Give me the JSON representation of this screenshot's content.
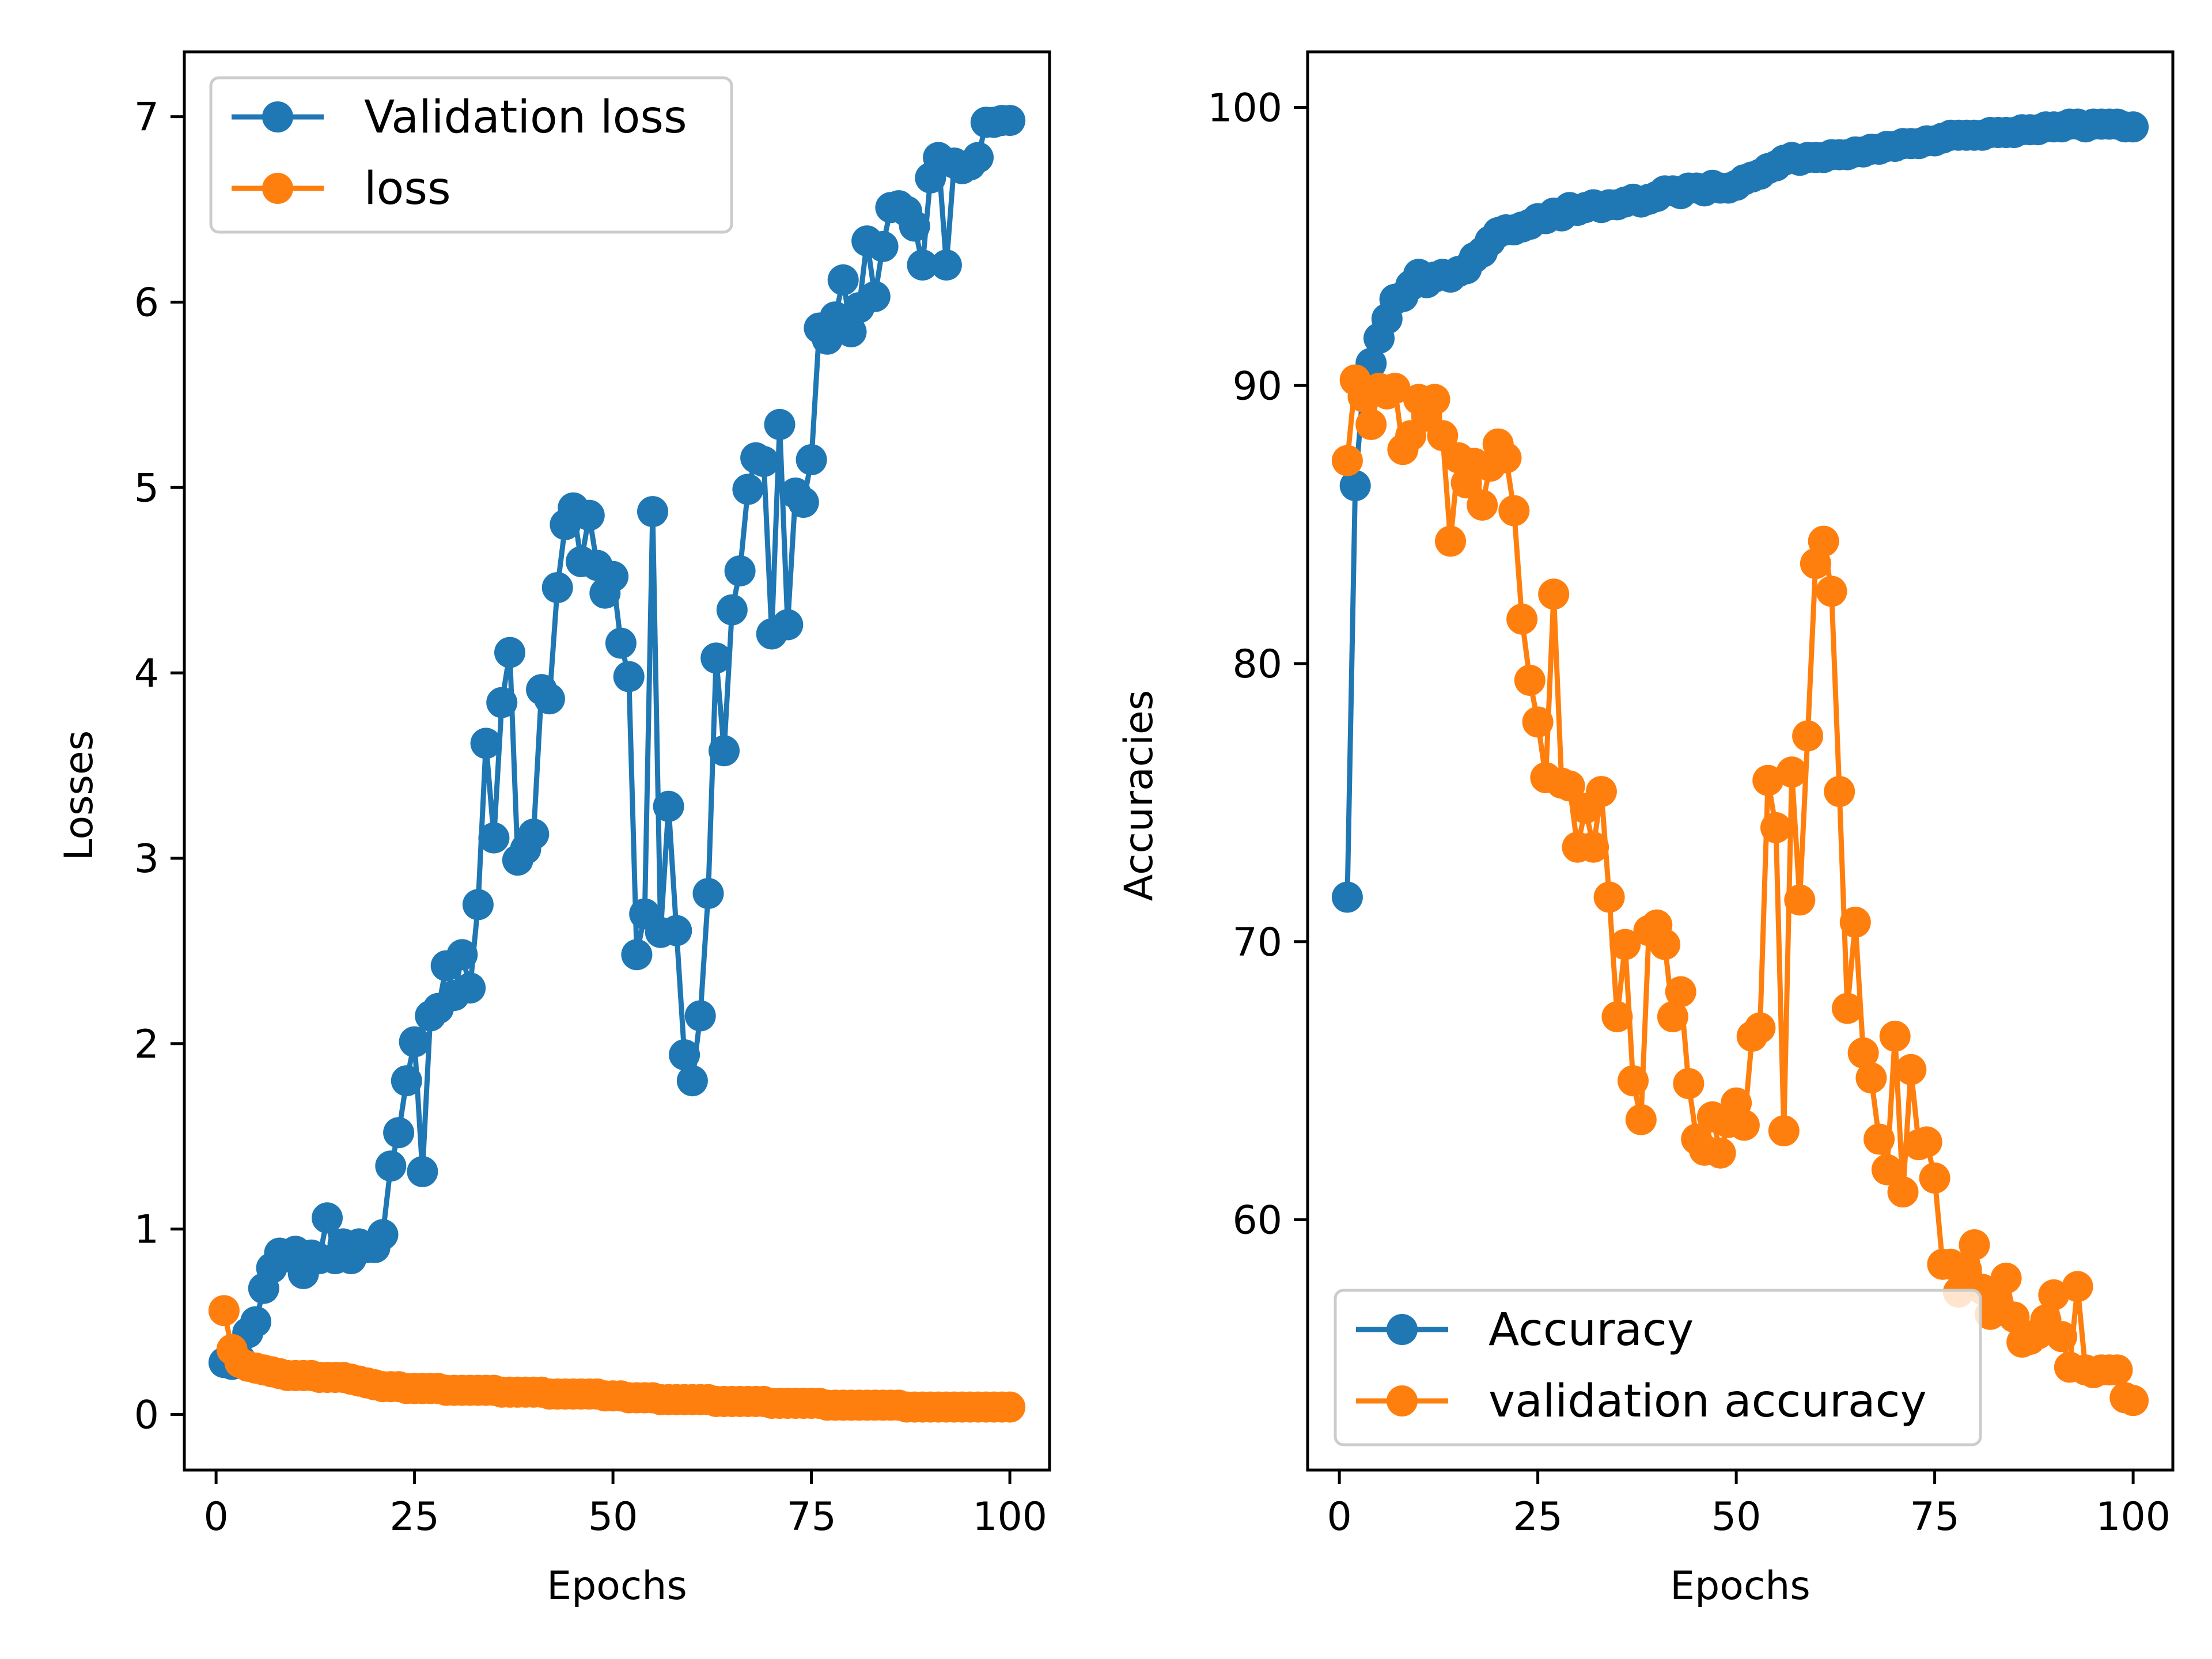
{
  "chart_data": [
    {
      "type": "line",
      "xlabel": "Epochs",
      "ylabel": "Losses",
      "xlim": [
        -4,
        105
      ],
      "ylim": [
        -0.3,
        7.35
      ],
      "xticks": [
        0,
        25,
        50,
        75,
        100
      ],
      "yticks": [
        0,
        1,
        2,
        3,
        4,
        5,
        6,
        7
      ],
      "legend_position": "upper-left",
      "x": [
        1,
        2,
        3,
        4,
        5,
        6,
        7,
        8,
        9,
        10,
        11,
        12,
        13,
        14,
        15,
        16,
        17,
        18,
        19,
        20,
        21,
        22,
        23,
        24,
        25,
        26,
        27,
        28,
        29,
        30,
        31,
        32,
        33,
        34,
        35,
        36,
        37,
        38,
        39,
        40,
        41,
        42,
        43,
        44,
        45,
        46,
        47,
        48,
        49,
        50,
        51,
        52,
        53,
        54,
        55,
        56,
        57,
        58,
        59,
        60,
        61,
        62,
        63,
        64,
        65,
        66,
        67,
        68,
        69,
        70,
        71,
        72,
        73,
        74,
        75,
        76,
        77,
        78,
        79,
        80,
        81,
        82,
        83,
        84,
        85,
        86,
        87,
        88,
        89,
        90,
        91,
        92,
        93,
        94,
        95,
        96,
        97,
        98,
        99,
        100
      ],
      "series": [
        {
          "name": "Validation loss",
          "color": "#1f77b4",
          "values": [
            0.28,
            0.27,
            0.3,
            0.44,
            0.5,
            0.68,
            0.79,
            0.87,
            0.85,
            0.88,
            0.76,
            0.86,
            0.84,
            1.06,
            0.84,
            0.92,
            0.84,
            0.92,
            0.9,
            0.9,
            0.97,
            1.34,
            1.52,
            1.8,
            2.01,
            1.31,
            2.15,
            2.19,
            2.42,
            2.26,
            2.48,
            2.3,
            2.75,
            3.62,
            3.11,
            3.84,
            4.11,
            2.99,
            3.05,
            3.13,
            3.91,
            3.86,
            4.46,
            4.8,
            4.89,
            4.6,
            4.85,
            4.58,
            4.43,
            4.52,
            4.16,
            3.98,
            2.48,
            2.7,
            4.87,
            2.6,
            3.28,
            2.61,
            1.94,
            1.8,
            2.15,
            2.81,
            4.08,
            3.58,
            4.34,
            4.55,
            4.99,
            5.16,
            5.14,
            4.21,
            5.34,
            4.26,
            4.97,
            4.92,
            5.15,
            5.86,
            5.8,
            5.92,
            6.12,
            5.84,
            5.97,
            6.33,
            6.03,
            6.3,
            6.51,
            6.52,
            6.49,
            6.41,
            6.2,
            6.67,
            6.78,
            6.2,
            6.75,
            6.72,
            6.74,
            6.78,
            6.97,
            6.97,
            6.98,
            6.98
          ]
        },
        {
          "name": "loss",
          "color": "#ff7f0e",
          "values": [
            0.56,
            0.35,
            0.28,
            0.26,
            0.25,
            0.24,
            0.23,
            0.22,
            0.21,
            0.21,
            0.21,
            0.21,
            0.2,
            0.2,
            0.2,
            0.2,
            0.19,
            0.18,
            0.17,
            0.16,
            0.15,
            0.15,
            0.15,
            0.14,
            0.14,
            0.14,
            0.14,
            0.14,
            0.13,
            0.13,
            0.13,
            0.13,
            0.13,
            0.13,
            0.13,
            0.12,
            0.12,
            0.12,
            0.12,
            0.12,
            0.12,
            0.11,
            0.11,
            0.11,
            0.11,
            0.11,
            0.11,
            0.11,
            0.1,
            0.1,
            0.1,
            0.09,
            0.09,
            0.09,
            0.09,
            0.08,
            0.08,
            0.08,
            0.08,
            0.08,
            0.08,
            0.08,
            0.07,
            0.07,
            0.07,
            0.07,
            0.07,
            0.07,
            0.07,
            0.06,
            0.06,
            0.06,
            0.06,
            0.06,
            0.06,
            0.06,
            0.05,
            0.05,
            0.05,
            0.05,
            0.05,
            0.05,
            0.05,
            0.05,
            0.05,
            0.05,
            0.04,
            0.04,
            0.04,
            0.04,
            0.04,
            0.04,
            0.04,
            0.04,
            0.04,
            0.04,
            0.04,
            0.04,
            0.04,
            0.04
          ]
        }
      ]
    },
    {
      "type": "line",
      "xlabel": "Epochs",
      "ylabel": "Accuracies",
      "xlim": [
        -4,
        105
      ],
      "ylim": [
        51,
        102
      ],
      "xticks": [
        0,
        25,
        50,
        75,
        100
      ],
      "yticks": [
        60,
        70,
        80,
        90,
        100
      ],
      "legend_position": "lower-left",
      "x": [
        1,
        2,
        3,
        4,
        5,
        6,
        7,
        8,
        9,
        10,
        11,
        12,
        13,
        14,
        15,
        16,
        17,
        18,
        19,
        20,
        21,
        22,
        23,
        24,
        25,
        26,
        27,
        28,
        29,
        30,
        31,
        32,
        33,
        34,
        35,
        36,
        37,
        38,
        39,
        40,
        41,
        42,
        43,
        44,
        45,
        46,
        47,
        48,
        49,
        50,
        51,
        52,
        53,
        54,
        55,
        56,
        57,
        58,
        59,
        60,
        61,
        62,
        63,
        64,
        65,
        66,
        67,
        68,
        69,
        70,
        71,
        72,
        73,
        74,
        75,
        76,
        77,
        78,
        79,
        80,
        81,
        82,
        83,
        84,
        85,
        86,
        87,
        88,
        89,
        90,
        91,
        92,
        93,
        94,
        95,
        96,
        97,
        98,
        99,
        100
      ],
      "series": [
        {
          "name": "Accuracy",
          "color": "#1f77b4",
          "values": [
            71.6,
            86.4,
            89.9,
            90.8,
            91.7,
            92.4,
            93.1,
            93.2,
            93.6,
            94.0,
            93.7,
            93.9,
            94.0,
            93.9,
            94.1,
            94.2,
            94.6,
            94.8,
            95.2,
            95.5,
            95.6,
            95.6,
            95.7,
            95.8,
            96.0,
            96.0,
            96.2,
            96.1,
            96.4,
            96.3,
            96.4,
            96.5,
            96.4,
            96.5,
            96.5,
            96.6,
            96.7,
            96.6,
            96.7,
            96.8,
            97.0,
            97.0,
            96.9,
            97.1,
            97.1,
            97.0,
            97.2,
            97.1,
            97.1,
            97.2,
            97.4,
            97.5,
            97.6,
            97.8,
            97.9,
            98.1,
            98.2,
            98.1,
            98.2,
            98.2,
            98.2,
            98.3,
            98.3,
            98.3,
            98.4,
            98.4,
            98.5,
            98.5,
            98.6,
            98.6,
            98.7,
            98.7,
            98.7,
            98.8,
            98.8,
            98.9,
            99.0,
            99.0,
            99.0,
            99.0,
            99.0,
            99.1,
            99.1,
            99.1,
            99.1,
            99.2,
            99.2,
            99.2,
            99.3,
            99.3,
            99.3,
            99.4,
            99.4,
            99.3,
            99.4,
            99.4,
            99.4,
            99.4,
            99.3,
            99.3
          ]
        },
        {
          "name": "validation accuracy",
          "color": "#ff7f0e",
          "values": [
            87.3,
            90.2,
            89.6,
            88.6,
            89.9,
            89.7,
            89.9,
            87.7,
            88.2,
            89.5,
            88.9,
            89.5,
            88.2,
            84.4,
            87.4,
            86.5,
            87.2,
            85.7,
            87.1,
            87.9,
            87.4,
            85.5,
            81.6,
            79.4,
            77.9,
            75.9,
            82.5,
            75.7,
            75.6,
            73.4,
            74.8,
            73.4,
            75.4,
            71.6,
            67.3,
            69.9,
            65.0,
            63.6,
            70.4,
            70.6,
            69.9,
            67.3,
            68.2,
            64.9,
            62.9,
            62.5,
            63.7,
            62.4,
            63.5,
            64.2,
            63.4,
            66.6,
            66.9,
            75.8,
            74.1,
            63.2,
            76.1,
            71.5,
            77.4,
            83.6,
            84.4,
            82.6,
            75.4,
            67.6,
            70.7,
            66.0,
            65.1,
            62.9,
            61.8,
            66.6,
            61.0,
            65.4,
            62.7,
            62.8,
            61.5,
            58.4,
            58.4,
            57.4,
            58.2,
            59.1,
            57.5,
            56.6,
            57.0,
            57.9,
            56.5,
            55.6,
            55.7,
            55.9,
            56.4,
            57.3,
            55.8,
            54.7,
            57.6,
            54.6,
            54.5,
            54.6,
            54.6,
            54.6,
            53.6,
            53.5
          ]
        }
      ]
    }
  ]
}
